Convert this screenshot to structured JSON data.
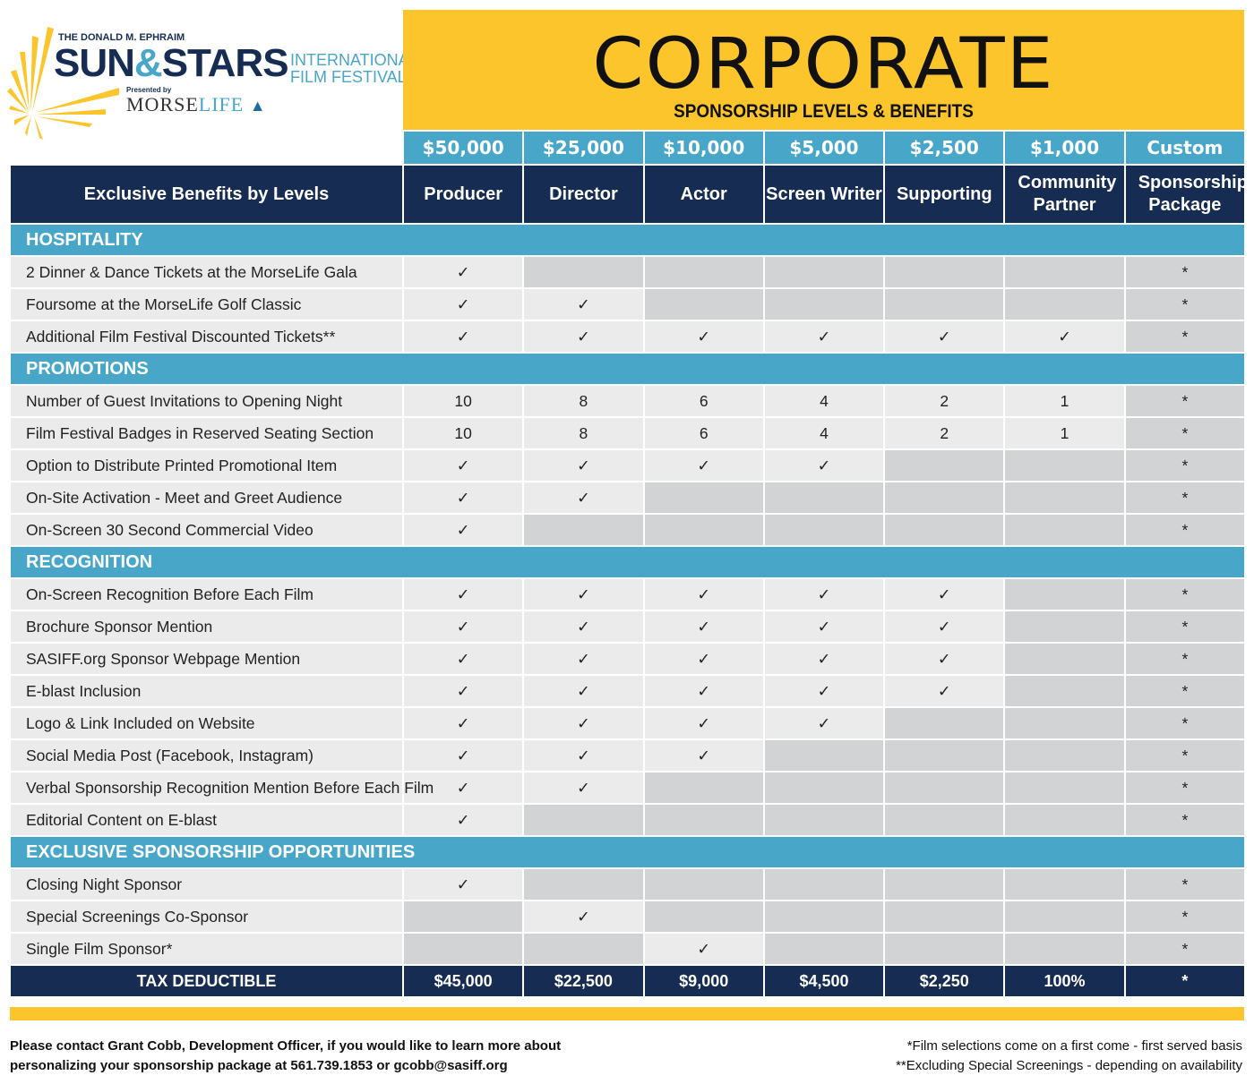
{
  "logo": {
    "pre": "THE DONALD M. EPHRAIM",
    "name_a": "SUN",
    "amp": "&",
    "name_b": "STARS",
    "sub1": "INTERNATIONAL",
    "sub2": "FILM FESTIVAL",
    "presented": "Presented by",
    "morse": "MORSE",
    "life": "LIFE"
  },
  "banner": {
    "title": "CORPORATE",
    "subtitle": "SPONSORSHIP LEVELS & BENEFITS"
  },
  "colors": {
    "yellow": "#FBC52B",
    "navy": "#162C52",
    "teal": "#48A6C8",
    "light": "#EBEBEB",
    "gray": "#D1D3D5"
  },
  "prices": [
    "$50,000",
    "$25,000",
    "$10,000",
    "$5,000",
    "$2,500",
    "$1,000",
    "Custom"
  ],
  "header_label": "Exclusive Benefits by Levels",
  "tiers": [
    "Producer",
    "Director",
    "Actor",
    "Screen Writer",
    "Supporting",
    "Community Partner",
    "Sponsorship Package"
  ],
  "sections": [
    {
      "title": "HOSPITALITY",
      "rows": [
        {
          "label": "2 Dinner & Dance Tickets at the MorseLife Gala",
          "cells": [
            "✓",
            "",
            "",
            "",
            "",
            "",
            "*"
          ]
        },
        {
          "label": "Foursome at the MorseLife Golf Classic",
          "cells": [
            "✓",
            "✓",
            "",
            "",
            "",
            "",
            "*"
          ]
        },
        {
          "label": "Additional Film Festival Discounted Tickets**",
          "cells": [
            "✓",
            "✓",
            "✓",
            "✓",
            "✓",
            "✓",
            "*"
          ]
        }
      ]
    },
    {
      "title": "PROMOTIONS",
      "rows": [
        {
          "label": "Number of Guest Invitations to Opening Night",
          "cells": [
            "10",
            "8",
            "6",
            "4",
            "2",
            "1",
            "*"
          ]
        },
        {
          "label": "Film Festival Badges in Reserved Seating Section",
          "cells": [
            "10",
            "8",
            "6",
            "4",
            "2",
            "1",
            "*"
          ]
        },
        {
          "label": "Option to Distribute Printed Promotional Item",
          "cells": [
            "✓",
            "✓",
            "✓",
            "✓",
            "",
            "",
            "*"
          ]
        },
        {
          "label": "On-Site Activation - Meet and Greet Audience",
          "cells": [
            "✓",
            "✓",
            "",
            "",
            "",
            "",
            "*"
          ]
        },
        {
          "label": "On-Screen 30 Second Commercial Video",
          "cells": [
            "✓",
            "",
            "",
            "",
            "",
            "",
            "*"
          ]
        }
      ]
    },
    {
      "title": "RECOGNITION",
      "rows": [
        {
          "label": "On-Screen Recognition Before Each Film",
          "cells": [
            "✓",
            "✓",
            "✓",
            "✓",
            "✓",
            "",
            "*"
          ]
        },
        {
          "label": "Brochure Sponsor Mention",
          "cells": [
            "✓",
            "✓",
            "✓",
            "✓",
            "✓",
            "",
            "*"
          ]
        },
        {
          "label": "SASIFF.org Sponsor Webpage Mention",
          "cells": [
            "✓",
            "✓",
            "✓",
            "✓",
            "✓",
            "",
            "*"
          ]
        },
        {
          "label": "E-blast Inclusion",
          "cells": [
            "✓",
            "✓",
            "✓",
            "✓",
            "✓",
            "",
            "*"
          ]
        },
        {
          "label": "Logo & Link Included on Website",
          "cells": [
            "✓",
            "✓",
            "✓",
            "✓",
            "",
            "",
            "*"
          ]
        },
        {
          "label": "Social Media Post (Facebook, Instagram)",
          "cells": [
            "✓",
            "✓",
            "✓",
            "",
            "",
            "",
            "*"
          ]
        },
        {
          "label": "Verbal Sponsorship Recognition Mention Before Each Film",
          "cells": [
            "✓",
            "✓",
            "",
            "",
            "",
            "",
            "*"
          ]
        },
        {
          "label": "Editorial Content on E-blast",
          "cells": [
            "✓",
            "",
            "",
            "",
            "",
            "",
            "*"
          ]
        }
      ]
    },
    {
      "title": "EXCLUSIVE SPONSORSHIP OPPORTUNITIES",
      "rows": [
        {
          "label": "Closing Night Sponsor",
          "cells": [
            "✓",
            "",
            "",
            "",
            "",
            "",
            "*"
          ]
        },
        {
          "label": "Special Screenings Co-Sponsor",
          "cells": [
            "",
            "✓",
            "",
            "",
            "",
            "",
            "*"
          ]
        },
        {
          "label": "Single Film Sponsor*",
          "cells": [
            "",
            "",
            "✓",
            "",
            "",
            "",
            "*"
          ]
        }
      ]
    }
  ],
  "tax": {
    "label": "TAX DEDUCTIBLE",
    "values": [
      "$45,000",
      "$22,500",
      "$9,000",
      "$4,500",
      "$2,250",
      "100%",
      "*"
    ]
  },
  "footer": {
    "left1": "Please contact Grant Cobb, Development Officer, if you would like to learn more about",
    "left2": "personalizing your sponsorship package at 561.739.1853 or gcobb@sasiff.org",
    "right1": "*Film selections come on a first come - first served basis",
    "right2": "**Excluding Special Screenings - depending on availability"
  }
}
